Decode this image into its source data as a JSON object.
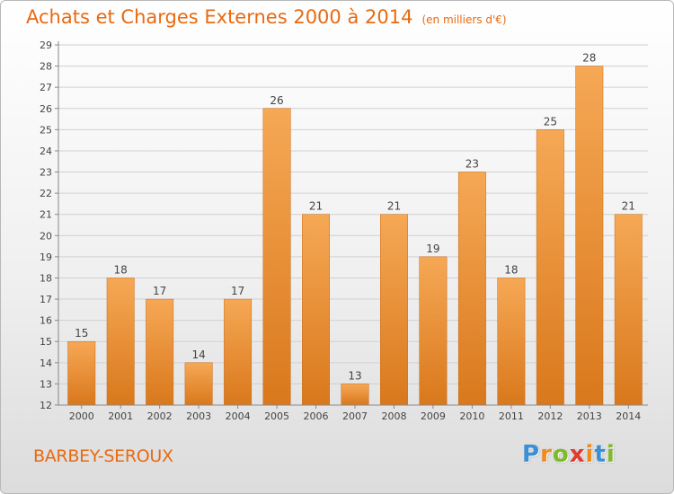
{
  "title": "Achats et Charges Externes 2000 à 2014",
  "subtitle": "(en milliers d'€)",
  "commune": "BARBEY-SEROUX",
  "logo": {
    "letters": [
      "P",
      "r",
      "o",
      "x",
      "i",
      "t",
      "i"
    ],
    "colors": [
      "#3a8fd6",
      "#f08a1c",
      "#7dbb2a",
      "#e23a2e",
      "#f08a1c",
      "#3a8fd6",
      "#7dbb2a"
    ]
  },
  "colors": {
    "bar_top": "#f6a855",
    "bar_bottom": "#d9781c",
    "text": "#e86a10",
    "grid": "#d0d0d0"
  },
  "chart_data": {
    "type": "bar",
    "categories": [
      "2000",
      "2001",
      "2002",
      "2003",
      "2004",
      "2005",
      "2006",
      "2007",
      "2008",
      "2009",
      "2010",
      "2011",
      "2012",
      "2013",
      "2014"
    ],
    "values": [
      15,
      18,
      17,
      14,
      17,
      26,
      21,
      13,
      21,
      19,
      23,
      18,
      25,
      28,
      21
    ],
    "data_labels": [
      "15",
      "18",
      "17",
      "14",
      "17",
      "26",
      "21",
      "13",
      "21",
      "19",
      "23",
      "18",
      "25",
      "28",
      "21"
    ],
    "yticks": [
      "12",
      "13",
      "14",
      "15",
      "16",
      "17",
      "18",
      "19",
      "20",
      "21",
      "22",
      "23",
      "24",
      "25",
      "26",
      "27",
      "28",
      "29"
    ],
    "ylim": [
      12,
      29
    ],
    "xlabel": "",
    "ylabel": "",
    "grid": true
  }
}
